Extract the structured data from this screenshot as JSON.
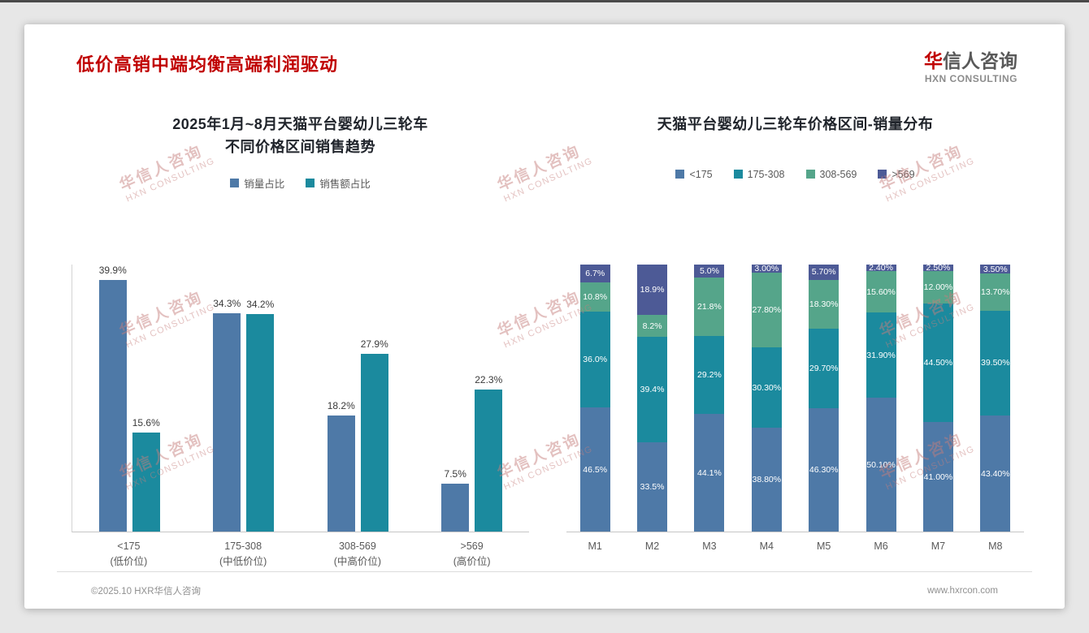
{
  "page": {
    "title": "低价高销中端均衡高端利润驱动",
    "logo": {
      "brand_red": "华",
      "brand_rest": "信人咨询",
      "subtitle": "HXN CONSULTING"
    },
    "watermark": {
      "line1": "华信人咨询",
      "line2": "HXN CONSULTING"
    },
    "footer": {
      "left": "©2025.10 HXR华信人咨询",
      "right": "www.hxrcon.com"
    }
  },
  "colors": {
    "accent_red": "#c00000",
    "series_blue": "#4e79a7",
    "series_teal": "#1b8a9e",
    "series_green": "#55a58a",
    "series_indigo": "#4d5a96"
  },
  "chart_data": [
    {
      "type": "bar",
      "title_line1": "2025年1月~8月天猫平台婴幼儿三轮车",
      "title_line2": "不同价格区间销售趋势",
      "categories": [
        "<175",
        "175-308",
        "308-569",
        ">569"
      ],
      "category_sublabels": [
        "(低价位)",
        "(中低价位)",
        "(中高价位)",
        "(高价位)"
      ],
      "series": [
        {
          "name": "销量占比",
          "color_key": "series_blue",
          "values": [
            39.9,
            34.3,
            18.2,
            7.5
          ],
          "labels": [
            "39.9%",
            "34.3%",
            "18.2%",
            "7.5%"
          ]
        },
        {
          "name": "销售额占比",
          "color_key": "series_teal",
          "values": [
            15.6,
            34.2,
            27.9,
            22.3
          ],
          "labels": [
            "15.6%",
            "34.2%",
            "27.9%",
            "22.3%"
          ]
        }
      ],
      "ylim": [
        0,
        42
      ],
      "grid": false,
      "legend_position": "top"
    },
    {
      "type": "stacked-bar",
      "title": "天猫平台婴幼儿三轮车价格区间-销量分布",
      "categories": [
        "M1",
        "M2",
        "M3",
        "M4",
        "M5",
        "M6",
        "M7",
        "M8"
      ],
      "series": [
        {
          "name": "<175",
          "color_key": "series_blue",
          "values": [
            46.5,
            33.5,
            44.1,
            38.8,
            46.3,
            50.1,
            41.0,
            43.4
          ],
          "labels": [
            "46.5%",
            "33.5%",
            "44.1%",
            "38.80%",
            "46.30%",
            "50.10%",
            "41.00%",
            "43.40%"
          ]
        },
        {
          "name": "175-308",
          "color_key": "series_teal",
          "values": [
            36.0,
            39.4,
            29.2,
            30.3,
            29.7,
            31.9,
            44.5,
            39.5
          ],
          "labels": [
            "36.0%",
            "39.4%",
            "29.2%",
            "30.30%",
            "29.70%",
            "31.90%",
            "44.50%",
            "39.50%"
          ]
        },
        {
          "name": "308-569",
          "color_key": "series_green",
          "values": [
            10.8,
            8.2,
            21.8,
            27.8,
            18.3,
            15.6,
            12.0,
            13.7
          ],
          "labels": [
            "10.8%",
            "8.2%",
            "21.8%",
            "27.80%",
            "18.30%",
            "15.60%",
            "12.00%",
            "13.70%"
          ]
        },
        {
          "name": ">569",
          "color_key": "series_indigo",
          "values": [
            6.7,
            18.9,
            5.0,
            3.0,
            5.7,
            2.4,
            2.5,
            3.5
          ],
          "labels": [
            "6.7%",
            "18.9%",
            "5.0%",
            "3.00%",
            "5.70%",
            "2.40%",
            "2.50%",
            "3.50%"
          ]
        }
      ],
      "ylim": [
        0,
        100
      ],
      "grid": false,
      "legend_position": "top"
    }
  ]
}
